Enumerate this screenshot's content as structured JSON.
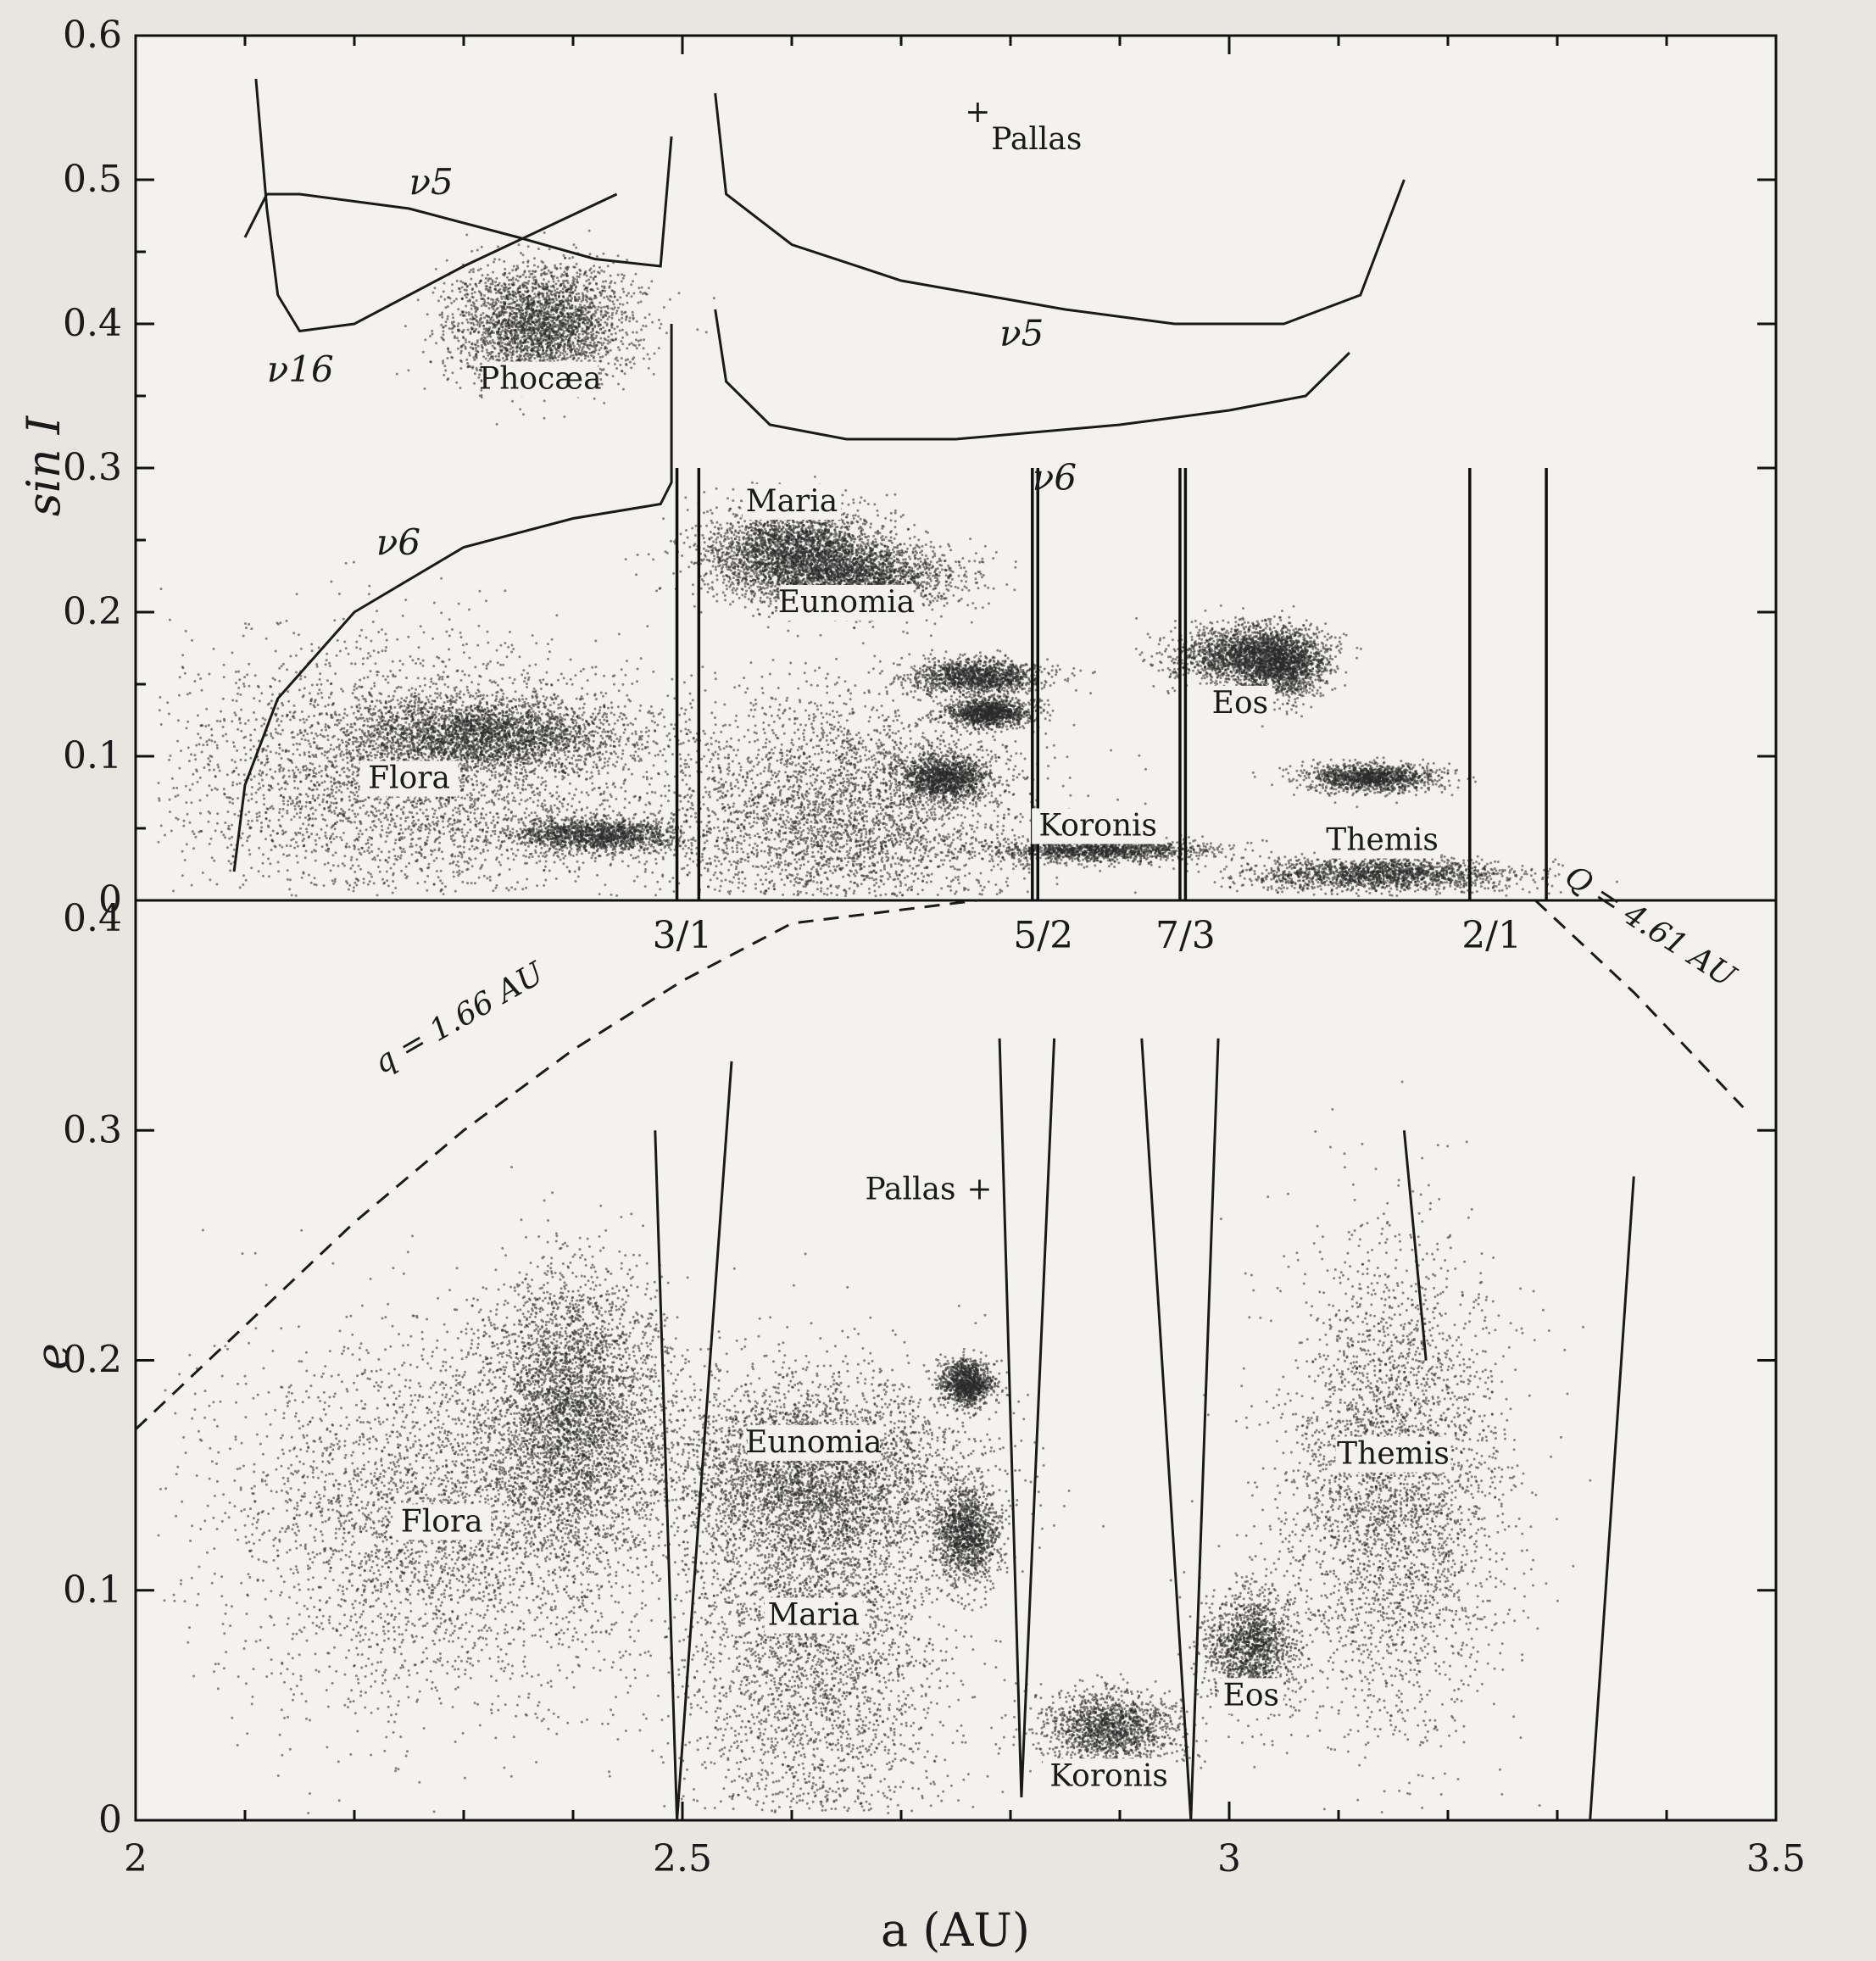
{
  "chart_data": [
    {
      "type": "scatter",
      "panel": "top",
      "ylabel": "sin I",
      "xlim": [
        2,
        3.5
      ],
      "ylim": [
        0,
        0.6
      ],
      "y_ticks": [
        "0",
        "0.1",
        "0.2",
        "0.3",
        "0.4",
        "0.5",
        "0.6"
      ],
      "y_tick_values": [
        0,
        0.1,
        0.2,
        0.3,
        0.4,
        0.5,
        0.6
      ],
      "grid": false,
      "clusters": [
        {
          "name": "Flora",
          "x": 2.25,
          "y": 0.085,
          "sx": 0.11,
          "sy": 0.045
        },
        {
          "name": "",
          "x": 2.32,
          "y": 0.115,
          "sx": 0.06,
          "sy": 0.012
        },
        {
          "name": "",
          "x": 2.42,
          "y": 0.045,
          "sx": 0.04,
          "sy": 0.006
        },
        {
          "name": "Phocæa",
          "x": 2.37,
          "y": 0.4,
          "sx": 0.04,
          "sy": 0.02
        },
        {
          "name": "Maria",
          "x": 2.6,
          "y": 0.245,
          "sx": 0.04,
          "sy": 0.015
        },
        {
          "name": "Eunomia",
          "x": 2.65,
          "y": 0.225,
          "sx": 0.05,
          "sy": 0.012
        },
        {
          "name": "",
          "x": 2.77,
          "y": 0.155,
          "sx": 0.03,
          "sy": 0.006
        },
        {
          "name": "",
          "x": 2.78,
          "y": 0.13,
          "sx": 0.02,
          "sy": 0.005
        },
        {
          "name": "",
          "x": 2.74,
          "y": 0.085,
          "sx": 0.02,
          "sy": 0.008
        },
        {
          "name": "",
          "x": 2.65,
          "y": 0.06,
          "sx": 0.08,
          "sy": 0.04
        },
        {
          "name": "Koronis",
          "x": 2.88,
          "y": 0.035,
          "sx": 0.05,
          "sy": 0.004
        },
        {
          "name": "Eos",
          "x": 3.01,
          "y": 0.17,
          "sx": 0.03,
          "sy": 0.01
        },
        {
          "name": "",
          "x": 3.05,
          "y": 0.165,
          "sx": 0.02,
          "sy": 0.012
        },
        {
          "name": "",
          "x": 3.13,
          "y": 0.085,
          "sx": 0.03,
          "sy": 0.005
        },
        {
          "name": "Themis",
          "x": 3.14,
          "y": 0.018,
          "sx": 0.06,
          "sy": 0.006
        }
      ],
      "curves": [
        {
          "name": "ν5",
          "points": [
            [
              2.1,
              0.46
            ],
            [
              2.12,
              0.49
            ],
            [
              2.15,
              0.49
            ],
            [
              2.25,
              0.48
            ],
            [
              2.35,
              0.46
            ],
            [
              2.42,
              0.445
            ],
            [
              2.48,
              0.44
            ],
            [
              2.49,
              0.53
            ]
          ]
        },
        {
          "name": "ν16",
          "points": [
            [
              2.11,
              0.57
            ],
            [
              2.12,
              0.48
            ],
            [
              2.13,
              0.42
            ],
            [
              2.15,
              0.395
            ],
            [
              2.2,
              0.4
            ],
            [
              2.3,
              0.44
            ],
            [
              2.44,
              0.49
            ]
          ]
        },
        {
          "name": "ν5",
          "points": [
            [
              2.53,
              0.56
            ],
            [
              2.54,
              0.49
            ],
            [
              2.6,
              0.455
            ],
            [
              2.7,
              0.43
            ],
            [
              2.85,
              0.41
            ],
            [
              2.95,
              0.4
            ],
            [
              3.05,
              0.4
            ],
            [
              3.12,
              0.42
            ],
            [
              3.16,
              0.5
            ]
          ]
        },
        {
          "name": "ν6",
          "points": [
            [
              2.53,
              0.41
            ],
            [
              2.54,
              0.36
            ],
            [
              2.58,
              0.33
            ],
            [
              2.65,
              0.32
            ],
            [
              2.75,
              0.32
            ],
            [
              2.9,
              0.33
            ],
            [
              3.0,
              0.34
            ],
            [
              3.07,
              0.35
            ],
            [
              3.11,
              0.38
            ]
          ]
        },
        {
          "name": "ν6",
          "points": [
            [
              2.09,
              0.02
            ],
            [
              2.1,
              0.08
            ],
            [
              2.13,
              0.14
            ],
            [
              2.2,
              0.2
            ],
            [
              2.3,
              0.245
            ],
            [
              2.4,
              0.265
            ],
            [
              2.48,
              0.275
            ],
            [
              2.49,
              0.29
            ],
            [
              2.49,
              0.4
            ]
          ]
        }
      ],
      "resonance_lines_x": [
        2.495,
        2.515,
        2.82,
        2.825,
        2.955,
        2.96,
        3.22,
        3.29
      ],
      "points_labels": [
        {
          "name": "Pallas",
          "x": 2.77,
          "y": 0.54
        }
      ],
      "curve_labels": [
        {
          "text": "ν5",
          "sub": "",
          "x": 2.25,
          "y": 0.49
        },
        {
          "text": "ν16",
          "sub": "",
          "x": 2.12,
          "y": 0.36
        },
        {
          "text": "ν5",
          "sub": "",
          "x": 2.79,
          "y": 0.385
        },
        {
          "text": "ν6",
          "sub": "",
          "x": 2.82,
          "y": 0.285
        },
        {
          "text": "ν6",
          "sub": "",
          "x": 2.22,
          "y": 0.24
        }
      ]
    },
    {
      "type": "scatter",
      "panel": "bottom",
      "xlabel": "a (AU)",
      "ylabel": "e",
      "xlim": [
        2,
        3.5
      ],
      "ylim": [
        0,
        0.4
      ],
      "x_ticks": [
        "2",
        "2.5",
        "3",
        "3.5"
      ],
      "x_tick_values": [
        2,
        2.5,
        3,
        3.5
      ],
      "y_ticks": [
        "0",
        "0.1",
        "0.2",
        "0.3",
        "0.4"
      ],
      "y_tick_values": [
        0,
        0.1,
        0.2,
        0.3,
        0.4
      ],
      "grid": false,
      "resonance_labels": [
        "3/1",
        "5/2",
        "7/3",
        "2/1"
      ],
      "resonance_label_x": [
        2.5,
        2.83,
        2.96,
        3.24
      ],
      "boundary_q": {
        "label": "q = 1.66 AU",
        "points": [
          [
            2.0,
            0.17
          ],
          [
            2.1,
            0.215
          ],
          [
            2.2,
            0.26
          ],
          [
            2.3,
            0.3
          ],
          [
            2.4,
            0.335
          ],
          [
            2.5,
            0.365
          ],
          [
            2.6,
            0.39
          ],
          [
            2.77,
            0.4
          ]
        ]
      },
      "boundary_Q": {
        "label": "Q = 4.61 AU",
        "points": [
          [
            3.28,
            0.4
          ],
          [
            3.37,
            0.36
          ],
          [
            3.47,
            0.31
          ]
        ]
      },
      "clusters": [
        {
          "name": "Flora",
          "x": 2.28,
          "y": 0.13,
          "sx": 0.1,
          "sy": 0.04
        },
        {
          "name": "",
          "x": 2.4,
          "y": 0.18,
          "sx": 0.04,
          "sy": 0.03
        },
        {
          "name": "Eunomia",
          "x": 2.62,
          "y": 0.15,
          "sx": 0.07,
          "sy": 0.02
        },
        {
          "name": "Maria",
          "x": 2.62,
          "y": 0.08,
          "sx": 0.06,
          "sy": 0.05
        },
        {
          "name": "",
          "x": 2.76,
          "y": 0.125,
          "sx": 0.015,
          "sy": 0.01
        },
        {
          "name": "",
          "x": 2.76,
          "y": 0.19,
          "sx": 0.012,
          "sy": 0.005
        },
        {
          "name": "Koronis",
          "x": 2.89,
          "y": 0.04,
          "sx": 0.03,
          "sy": 0.008
        },
        {
          "name": "Eos",
          "x": 3.02,
          "y": 0.075,
          "sx": 0.02,
          "sy": 0.012
        },
        {
          "name": "Themis",
          "x": 3.15,
          "y": 0.145,
          "sx": 0.05,
          "sy": 0.05
        }
      ],
      "boundaries": [
        {
          "points": [
            [
              2.475,
              0.3
            ],
            [
              2.495,
              0.0
            ],
            [
              2.545,
              0.33
            ]
          ]
        },
        {
          "points": [
            [
              2.79,
              0.34
            ],
            [
              2.81,
              0.01
            ],
            [
              2.84,
              0.34
            ]
          ]
        },
        {
          "points": [
            [
              2.92,
              0.34
            ],
            [
              2.965,
              0.0
            ],
            [
              2.99,
              0.34
            ]
          ]
        },
        {
          "points": [
            [
              3.16,
              0.3
            ],
            [
              3.18,
              0.2
            ]
          ]
        },
        {
          "points": [
            [
              3.33,
              0.0
            ],
            [
              3.37,
              0.28
            ]
          ]
        }
      ],
      "points_labels": [
        {
          "name": "Pallas",
          "x": 2.75,
          "y": 0.27
        }
      ]
    }
  ],
  "labels": {
    "top_ylabel": "sin I",
    "bottom_ylabel": "e",
    "xlabel": "a (AU)",
    "q_label": "q = 1.66 AU",
    "Q_label": "Q = 4.61 AU"
  }
}
